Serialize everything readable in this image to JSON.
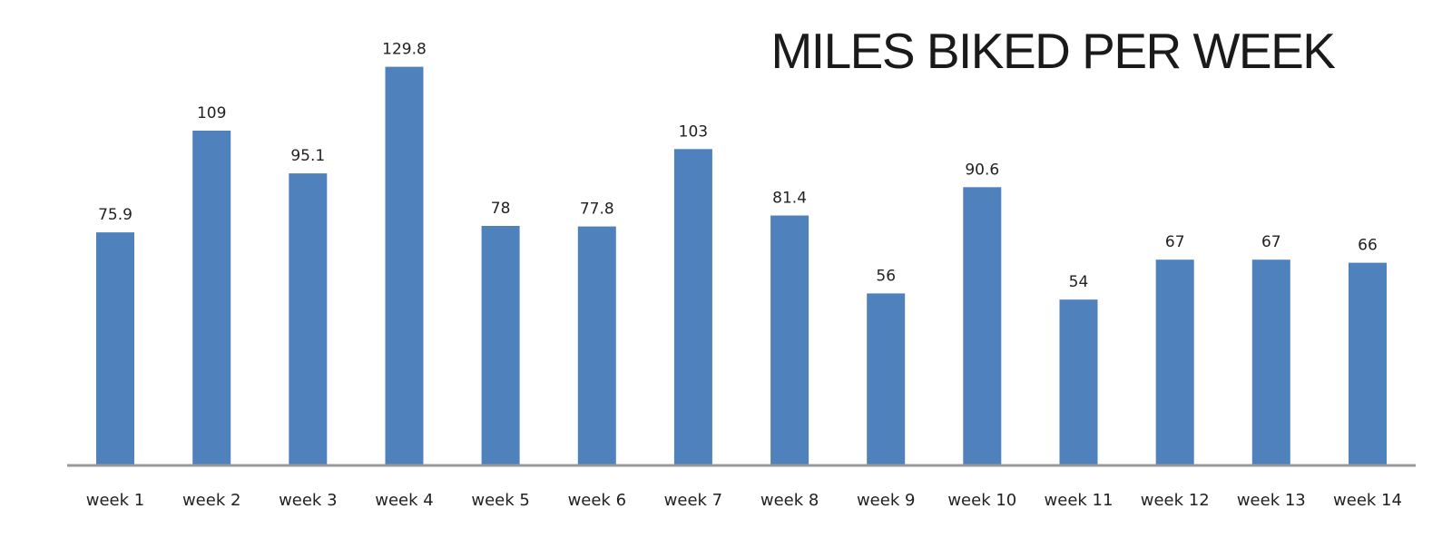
{
  "chart_data": {
    "type": "bar",
    "title": "MILES BIKED PER WEEK",
    "xlabel": "",
    "ylabel": "",
    "categories": [
      "week 1",
      "week 2",
      "week 3",
      "week 4",
      "week 5",
      "week 6",
      "week 7",
      "week 8",
      "week 9",
      "week 10",
      "week 11",
      "week 12",
      "week 13",
      "week 14"
    ],
    "values": [
      75.9,
      109,
      95.1,
      129.8,
      78,
      77.8,
      103,
      81.4,
      56,
      90.6,
      54,
      67,
      67,
      66
    ],
    "value_labels": [
      "75.9",
      "109",
      "95.1",
      "129.8",
      "78",
      "77.8",
      "103",
      "81.4",
      "56",
      "90.6",
      "54",
      "67",
      "67",
      "66"
    ],
    "ylim": [
      0,
      140
    ],
    "grid": false,
    "legend": "none",
    "colors": {
      "bar": "#4f81bd",
      "axis": "#999999"
    }
  }
}
